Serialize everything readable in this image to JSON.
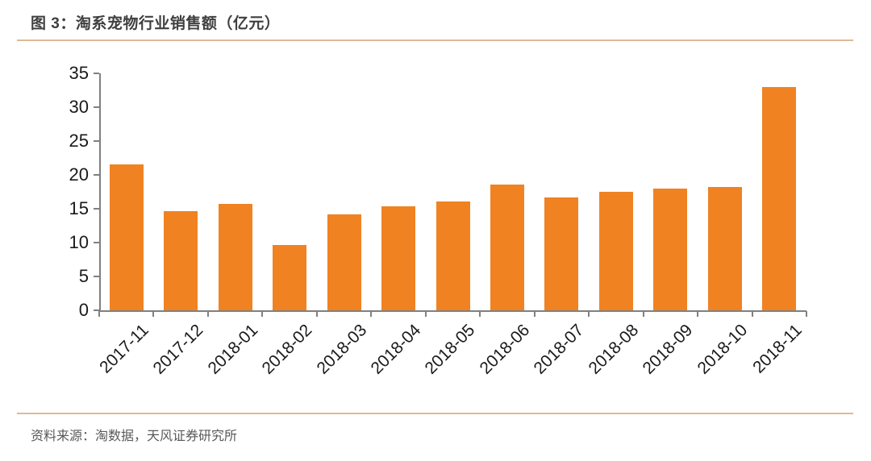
{
  "header": {
    "title": "图 3：淘系宠物行业销售额（亿元）"
  },
  "footer": {
    "source": "资料来源：淘数据，天风证券研究所"
  },
  "colors": {
    "bar": "#F08222",
    "divider": "#DFB994",
    "axis": "#808080",
    "title_text": "#3F3F3F",
    "source_text": "#595959",
    "tick_text": "#1A1A1A"
  },
  "chart_data": {
    "type": "bar",
    "title": "图 3：淘系宠物行业销售额（亿元）",
    "categories": [
      "2017-11",
      "2017-12",
      "2018-01",
      "2018-02",
      "2018-03",
      "2018-04",
      "2018-05",
      "2018-06",
      "2018-07",
      "2018-08",
      "2018-09",
      "2018-10",
      "2018-11"
    ],
    "values": [
      21.5,
      14.6,
      15.7,
      9.7,
      14.2,
      15.3,
      16.1,
      18.6,
      16.7,
      17.5,
      18.0,
      18.2,
      33.0
    ],
    "series_name": "淘系宠物行业销售额",
    "xlabel": "",
    "ylabel": "",
    "ylim": [
      0,
      35
    ],
    "yticks": [
      0,
      5,
      10,
      15,
      20,
      25,
      30,
      35
    ],
    "grid": false,
    "legend": "none",
    "bar_color": "#F08222"
  }
}
